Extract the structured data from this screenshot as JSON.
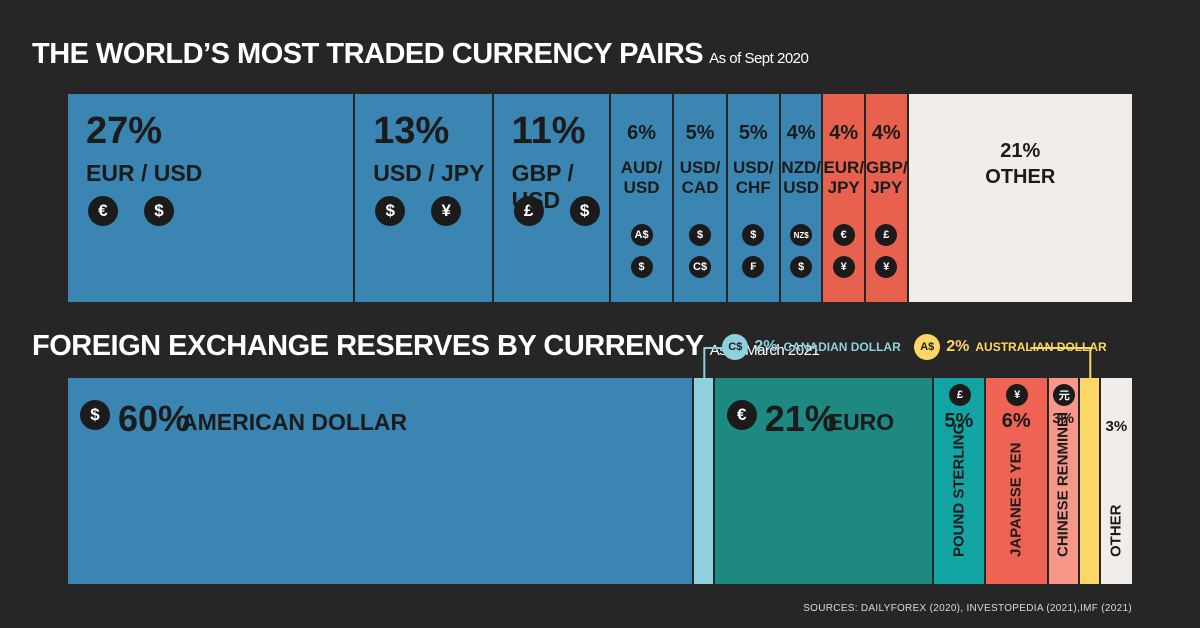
{
  "pairs_section": {
    "title": "THE WORLD’S MOST TRADED CURRENCY PAIRS",
    "subtitle": "As of Sept 2020"
  },
  "reserves_section": {
    "title": "FOREIGN EXCHANGE RESERVES BY CURRENCY",
    "subtitle": "As of March 2021"
  },
  "sources": "SOURCES: DAILYFOREX (2020), INVESTOPEDIA (2021),IMF (2021)",
  "colors": {
    "blue": "#3a85b1",
    "red": "#e8614f",
    "other": "#f2ede9",
    "light_blue": "#8fd0de",
    "teal": "#1d8980",
    "teal_bright": "#13a4a4",
    "tomato": "#ee6354",
    "salmon": "#f6978a",
    "yellow": "#fbd767"
  },
  "chart_data": [
    {
      "type": "treemap",
      "title": "THE WORLD’S MOST TRADED CURRENCY PAIRS",
      "subtitle": "As of Sept 2020",
      "categories": [
        "EUR / USD",
        "USD / JPY",
        "GBP / USD",
        "AUD/ USD",
        "USD/ CAD",
        "USD/ CHF",
        "NZD/ USD",
        "EUR/ JPY",
        "GBP/ JPY",
        "OTHER"
      ],
      "values": [
        27,
        13,
        11,
        6,
        5,
        5,
        4,
        4,
        4,
        21
      ],
      "items": [
        {
          "pct": "27%",
          "label": "EUR / USD",
          "value": 27,
          "symbols": [
            "€",
            "$"
          ],
          "color": "#3a85b1"
        },
        {
          "pct": "13%",
          "label": "USD / JPY",
          "value": 13,
          "symbols": [
            "$",
            "¥"
          ],
          "color": "#3a85b1"
        },
        {
          "pct": "11%",
          "label": "GBP / USD",
          "value": 11,
          "symbols": [
            "£",
            "$"
          ],
          "color": "#3a85b1"
        },
        {
          "pct": "6%",
          "label": "AUD/\nUSD",
          "value": 6,
          "symbols": [
            "A$",
            "$"
          ],
          "color": "#3a85b1"
        },
        {
          "pct": "5%",
          "label": "USD/\nCAD",
          "value": 5,
          "symbols": [
            "$",
            "C$"
          ],
          "color": "#3a85b1"
        },
        {
          "pct": "5%",
          "label": "USD/\nCHF",
          "value": 5,
          "symbols": [
            "$",
            "₣"
          ],
          "color": "#3a85b1"
        },
        {
          "pct": "4%",
          "label": "NZD/\nUSD",
          "value": 4,
          "symbols": [
            "NZ$",
            "$"
          ],
          "color": "#3a85b1"
        },
        {
          "pct": "4%",
          "label": "EUR/\nJPY",
          "value": 4,
          "symbols": [
            "€",
            "¥"
          ],
          "color": "#e8614f"
        },
        {
          "pct": "4%",
          "label": "GBP/\nJPY",
          "value": 4,
          "symbols": [
            "£",
            "¥"
          ],
          "color": "#e8614f"
        },
        {
          "pct": "21%",
          "label": "OTHER",
          "value": 21,
          "symbols": [],
          "color": "#f2ede9"
        }
      ]
    },
    {
      "type": "treemap",
      "title": "FOREIGN EXCHANGE RESERVES BY CURRENCY",
      "subtitle": "As of March 2021",
      "categories": [
        "AMERICAN DOLLAR",
        "CANADIAN DOLLAR",
        "EURO",
        "POUND STERLING",
        "JAPANESE YEN",
        "CHINESE RENMINBI",
        "AUSTRALIAN DOLLAR",
        "OTHER"
      ],
      "values": [
        60,
        2,
        21,
        5,
        6,
        3,
        2,
        3
      ],
      "items": [
        {
          "pct": "60%",
          "label": "AMERICAN DOLLAR",
          "value": 60,
          "symbol": "$",
          "color": "#3a85b1",
          "style": "inline"
        },
        {
          "pct": "2%",
          "label": "CANADIAN DOLLAR",
          "value": 2,
          "symbol": "C$",
          "color": "#8fd0de",
          "style": "callout"
        },
        {
          "pct": "21%",
          "label": "EURO",
          "value": 21,
          "symbol": "€",
          "color": "#1d8980",
          "style": "inline"
        },
        {
          "pct": "5%",
          "label": "POUND STERLING",
          "value": 5,
          "symbol": "£",
          "color": "#13a4a4",
          "style": "vertical"
        },
        {
          "pct": "6%",
          "label": "JAPANESE YEN",
          "value": 6,
          "symbol": "¥",
          "color": "#ee6354",
          "style": "vertical"
        },
        {
          "pct": "3%",
          "label": "CHINESE RENMINBI",
          "value": 3,
          "symbol": "元",
          "color": "#f6978a",
          "style": "vertical"
        },
        {
          "pct": "2%",
          "label": "AUSTRALIAN DOLLAR",
          "value": 2,
          "symbol": "A$",
          "color": "#fbd767",
          "style": "callout"
        },
        {
          "pct": "3%",
          "label": "OTHER",
          "value": 3,
          "symbol": "",
          "color": "#f2ede9",
          "style": "vertical"
        }
      ]
    }
  ]
}
